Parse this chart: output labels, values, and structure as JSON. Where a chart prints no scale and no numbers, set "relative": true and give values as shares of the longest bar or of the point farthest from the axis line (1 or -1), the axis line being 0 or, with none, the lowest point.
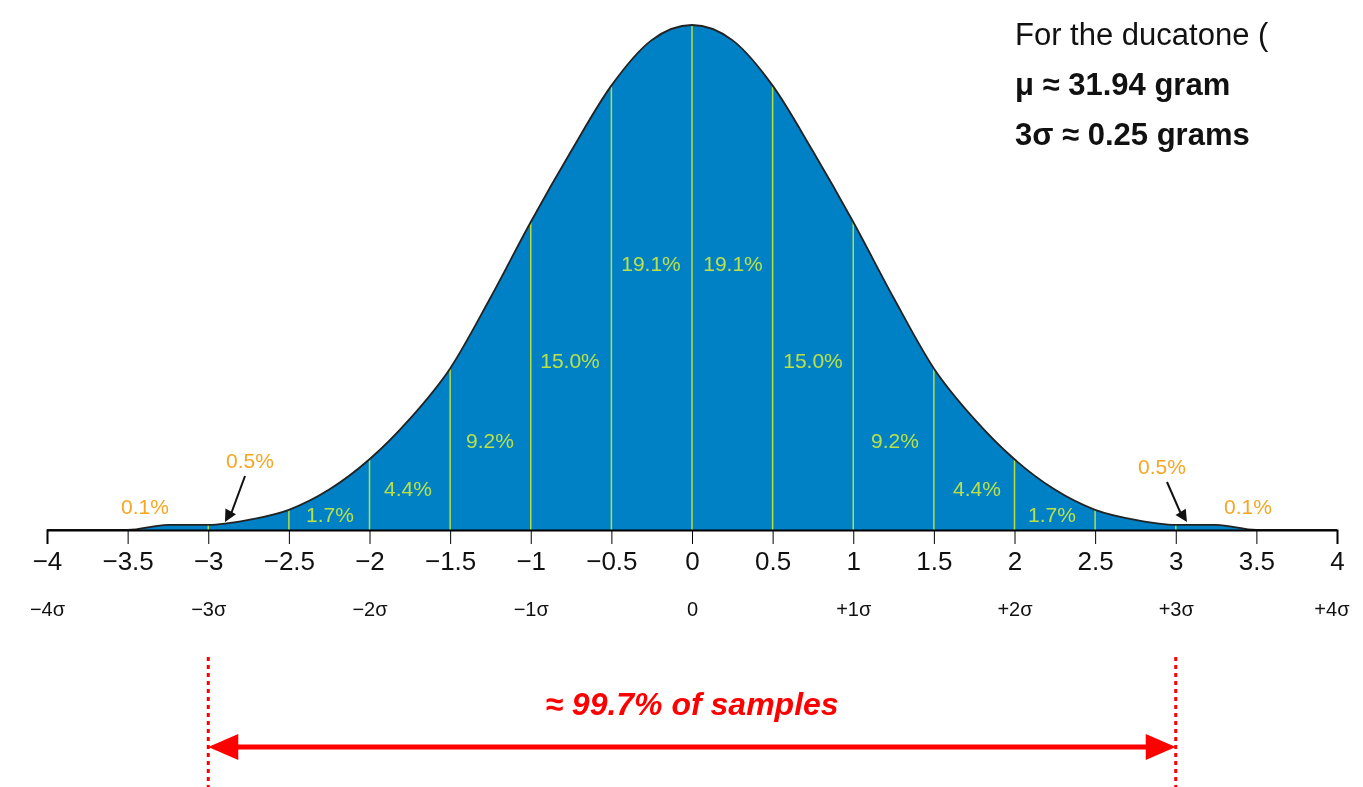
{
  "chart_data": {
    "type": "area",
    "relative": true,
    "x": [
      -4,
      -3.75,
      -3.5,
      -3.25,
      -3,
      -2.75,
      -2.5,
      -2.25,
      -2,
      -1.75,
      -1.5,
      -1.25,
      -1,
      -0.75,
      -0.5,
      -0.25,
      0,
      0.25,
      0.5,
      0.75,
      1,
      1.25,
      1.5,
      1.75,
      2,
      2.25,
      2.5,
      2.75,
      3,
      3.25,
      3.5,
      3.75,
      4
    ],
    "series": [
      {
        "color": "#0081c6",
        "values": [
          0,
          0,
          0,
          0.01,
          0.01,
          0.02,
          0.04,
          0.08,
          0.14,
          0.22,
          0.32,
          0.46,
          0.61,
          0.75,
          0.88,
          0.97,
          1,
          0.97,
          0.88,
          0.75,
          0.61,
          0.46,
          0.32,
          0.22,
          0.14,
          0.08,
          0.04,
          0.02,
          0.01,
          0.01,
          0,
          0,
          0
        ]
      }
    ],
    "xlim": [
      -4,
      4
    ],
    "xticks": [
      {
        "value": -4,
        "label": "−4"
      },
      {
        "value": -3.5,
        "label": "−3.5"
      },
      {
        "value": -3,
        "label": "−3"
      },
      {
        "value": -2.5,
        "label": "−2.5"
      },
      {
        "value": -2,
        "label": "−2"
      },
      {
        "value": -1.5,
        "label": "−1.5"
      },
      {
        "value": -1,
        "label": "−1"
      },
      {
        "value": -0.5,
        "label": "−0.5"
      },
      0,
      0.5,
      1,
      1.5,
      2,
      2.5,
      3,
      3.5,
      4
    ],
    "x2lim": [
      -4,
      4
    ],
    "x2ticks": [
      {
        "value": -4,
        "label": "−4σ"
      },
      {
        "value": -3,
        "label": "−3σ"
      },
      {
        "value": -2,
        "label": "−2σ"
      },
      {
        "value": -1,
        "label": "−1σ"
      },
      0,
      {
        "value": 1,
        "label": "+1σ"
      },
      {
        "value": 2,
        "label": "+2σ"
      },
      {
        "value": 3,
        "label": "+3σ"
      },
      {
        "value": 4,
        "label": "+4σ"
      }
    ],
    "ref_lines": [
      {
        "axis": "x",
        "value": -3,
        "color": "#b7dd3e"
      },
      {
        "axis": "x",
        "value": -2.5,
        "color": "#b7dd3e"
      },
      {
        "axis": "x",
        "value": -2,
        "color": "#b7dd3e"
      },
      {
        "axis": "x",
        "value": -1.5,
        "color": "#b7dd3e"
      },
      {
        "axis": "x",
        "value": -1,
        "color": "#b7dd3e"
      },
      {
        "axis": "x",
        "value": -0.5,
        "color": "#b7dd3e"
      },
      {
        "axis": "x",
        "value": 0,
        "color": "#b7dd3e"
      },
      {
        "axis": "x",
        "value": 0.5,
        "color": "#b7dd3e"
      },
      {
        "axis": "x",
        "value": 1,
        "color": "#b7dd3e"
      },
      {
        "axis": "x",
        "value": 1.5,
        "color": "#b7dd3e"
      },
      {
        "axis": "x",
        "value": 2,
        "color": "#b7dd3e"
      },
      {
        "axis": "x",
        "value": 2.5,
        "color": "#b7dd3e"
      },
      {
        "axis": "x",
        "value": 3,
        "color": "#b7dd3e"
      }
    ],
    "annotations": [
      "19.1%",
      "19.1%",
      "15.0%",
      "15.0%",
      "9.2%",
      "9.2%",
      "4.4%",
      "4.4%",
      "1.7%",
      "1.7%",
      "0.5%",
      "0.5%",
      "0.1%",
      "0.1%",
      "For the ducatone (",
      "μ  ≈  31.94 gram",
      "3σ  ≈  0.25 grams",
      "≈ 99.7% of samples"
    ]
  }
}
